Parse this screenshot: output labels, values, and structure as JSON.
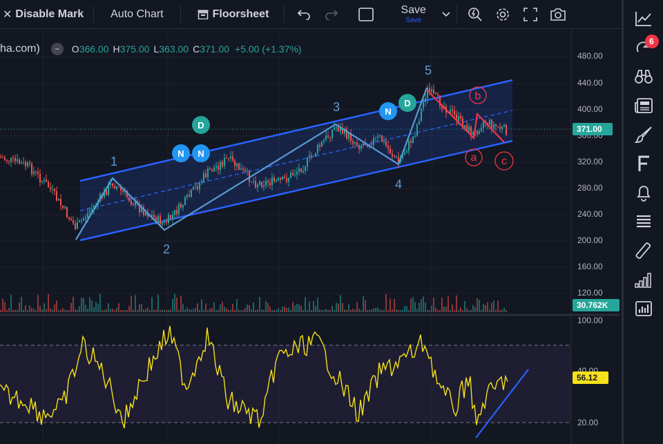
{
  "toolbar": {
    "disable_mark": "Disable Mark",
    "auto_chart": "Auto Chart",
    "floorsheet": "Floorsheet",
    "save_label": "Save",
    "save_sub": "Save"
  },
  "legend": {
    "symbol": "ha.com)",
    "o_key": "O",
    "o_val": "366.00",
    "h_key": "H",
    "h_val": "375.00",
    "l_key": "L",
    "l_val": "363.00",
    "c_key": "C",
    "c_val": "371.00",
    "change": "+5.00 (+1.37%)"
  },
  "sidebar": {
    "items": [
      {
        "icon": "chart-line-icon"
      },
      {
        "icon": "refresh-icon",
        "badge": "6"
      },
      {
        "icon": "binoculars-icon"
      },
      {
        "icon": "newspaper-icon"
      },
      {
        "icon": "brush-icon"
      },
      {
        "icon": "f-letter-icon"
      },
      {
        "icon": "bell-icon"
      },
      {
        "icon": "list-icon"
      },
      {
        "icon": "ruler-icon"
      },
      {
        "icon": "signal-bars-icon"
      },
      {
        "icon": "bar-chart-icon"
      }
    ]
  },
  "price_axis": {
    "ticks": [
      "480.00",
      "440.00",
      "400.00",
      "360.00",
      "320.00",
      "280.00",
      "240.00",
      "200.00",
      "160.00",
      "120.00"
    ],
    "last_price": "371.00",
    "volume": "30.762K"
  },
  "rsi_axis": {
    "ticks": [
      "100.00",
      "20.00"
    ],
    "partial_tick": "40.00",
    "value": "56.12"
  },
  "annotations": {
    "waves": [
      "1",
      "2",
      "3",
      "4",
      "5"
    ],
    "corrective": [
      "a",
      "b",
      "c"
    ],
    "markers": [
      "N",
      "N",
      "D",
      "N",
      "D"
    ]
  },
  "colors": {
    "background": "#131722",
    "channel": "#2962ff",
    "wave": "#5b9bd5",
    "corrective": "#f23645",
    "rsi": "#f5e11b",
    "up": "#26a69a",
    "down": "#ef5350",
    "marker_n": "#2196f3",
    "marker_d": "#26a69a"
  }
}
